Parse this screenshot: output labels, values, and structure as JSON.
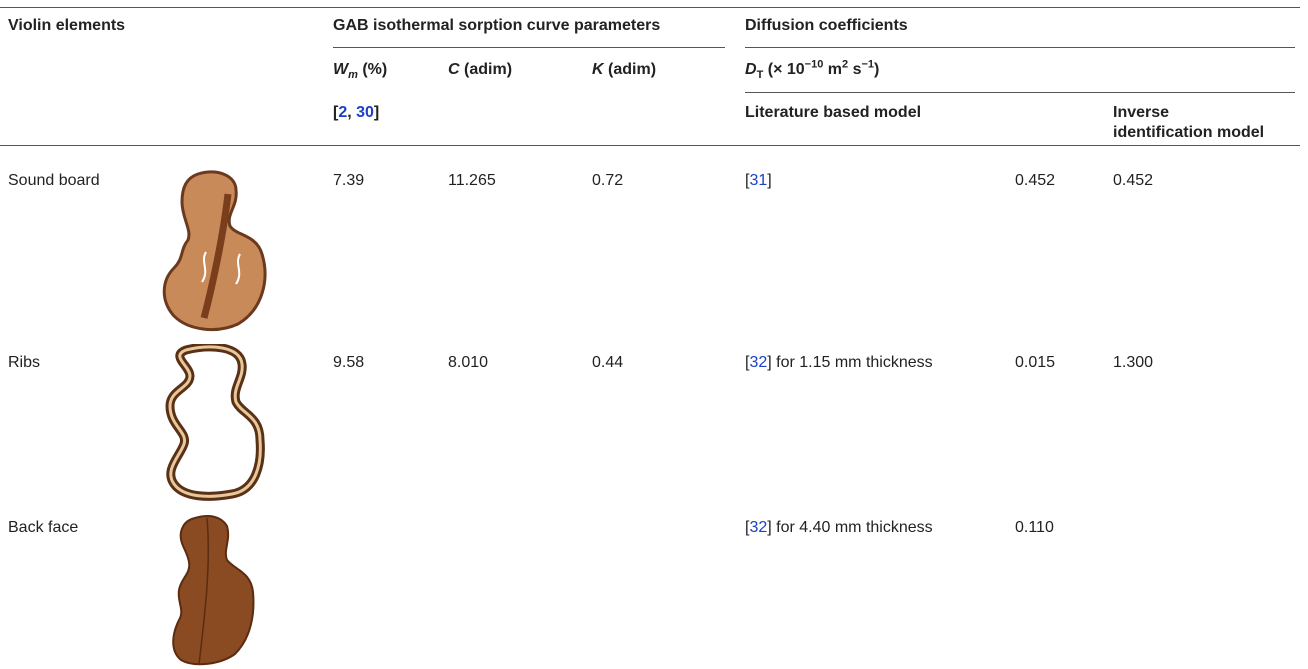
{
  "header": {
    "col_element": "Violin elements",
    "group_gab": "GAB isothermal sorption curve parameters",
    "group_diffusion": "Diffusion coefficients",
    "wm": {
      "symbol": "W",
      "sub": "m",
      "unit": "(%)"
    },
    "c": {
      "symbol": "C",
      "unit": "(adim)"
    },
    "k": {
      "symbol": "K",
      "unit": "(adim)"
    },
    "dt": {
      "symbol": "D",
      "sub": "T",
      "unit_parts": [
        "(× 10",
        "−10",
        " m",
        "2",
        " s",
        "−1",
        ")"
      ]
    },
    "gab_refs": [
      "[",
      "2",
      ", ",
      "30",
      "]"
    ],
    "literature": "Literature based model",
    "inverse": [
      "Inverse",
      "identification model"
    ]
  },
  "rows": [
    {
      "element": "Sound board",
      "wm": "7.39",
      "c": "11.265",
      "k": "0.72",
      "ref": [
        "[",
        "31",
        "]"
      ],
      "lit": "0.452",
      "inv": "0.452"
    },
    {
      "element": "Ribs",
      "wm": "9.58",
      "c": "8.010",
      "k": "0.44",
      "ref": [
        "[",
        "32",
        "]"
      ],
      "ref_note": " for 1.15 mm thickness",
      "lit": "0.015",
      "inv": "1.300"
    },
    {
      "element": "Back face",
      "ref": [
        "[",
        "32",
        "]"
      ],
      "ref_note": " for 4.40 mm thickness",
      "lit": "0.110"
    }
  ]
}
